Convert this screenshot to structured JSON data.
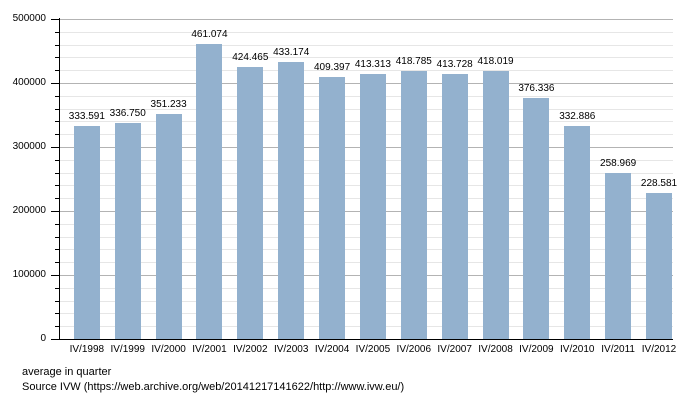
{
  "chart_data": {
    "type": "bar",
    "title": "",
    "xlabel": "",
    "ylabel": "",
    "categories": [
      "IV/1998",
      "IV/1999",
      "IV/2000",
      "IV/2001",
      "IV/2002",
      "IV/2003",
      "IV/2004",
      "IV/2005",
      "IV/2006",
      "IV/2007",
      "IV/2008",
      "IV/2009",
      "IV/2010",
      "IV/2011",
      "IV/2012"
    ],
    "values": [
      333591,
      336750,
      351233,
      461074,
      424465,
      433174,
      409397,
      413313,
      418785,
      413728,
      418019,
      376336,
      332886,
      258969,
      228581
    ],
    "bar_labels": [
      "333.591",
      "336.750",
      "351.233",
      "461.074",
      "424.465",
      "433.174",
      "409.397",
      "413.313",
      "418.785",
      "413.728",
      "418.019",
      "376.336",
      "332.886",
      "258.969",
      "228.581"
    ],
    "ylim": [
      0,
      500000
    ],
    "ytick_major_step": 100000,
    "ytick_minor_step": 20000,
    "ytick_labels": [
      "0",
      "100000",
      "200000",
      "300000",
      "400000",
      "500000"
    ],
    "grid": true,
    "legend": "none",
    "bar_color": "#93b1ce",
    "grid_major_color": "#b3b3b3",
    "grid_minor_color": "#e6e6e6",
    "axis_color": "#000000",
    "text_color": "#000000"
  },
  "footer": {
    "note": "average in quarter",
    "source": "Source IVW (https://web.archive.org/web/20141217141622/http://www.ivw.eu/)"
  }
}
